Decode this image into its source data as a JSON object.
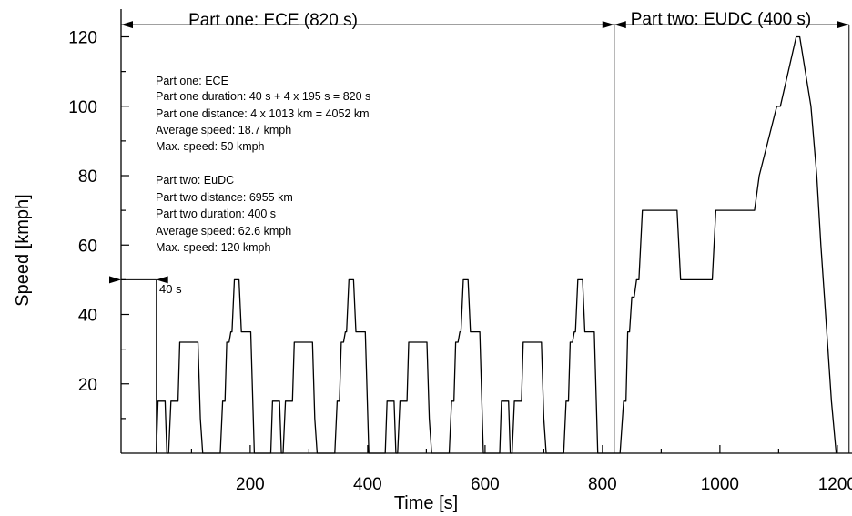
{
  "chart_data": {
    "type": "line",
    "xlabel": "Time [s]",
    "ylabel": "Speed [kmph]",
    "xlim": [
      -20,
      1225
    ],
    "ylim": [
      0,
      128
    ],
    "x_ticks_major": [
      200,
      400,
      600,
      800,
      1000,
      1200
    ],
    "y_ticks_major": [
      20,
      40,
      60,
      80,
      100,
      120
    ],
    "series": [
      {
        "x": [
          40,
          43,
          46,
          52,
          55,
          58,
          61,
          65,
          77,
          80,
          84,
          91,
          111,
          115,
          119,
          149,
          153,
          157,
          160,
          164,
          167,
          169,
          173,
          181,
          185,
          188,
          195,
          201,
          207,
          235,
          238,
          241,
          247,
          250,
          253,
          256,
          260,
          272,
          275,
          279,
          286,
          306,
          310,
          314,
          344,
          348,
          352,
          355,
          359,
          362,
          364,
          368,
          376,
          380,
          383,
          390,
          396,
          402,
          430,
          433,
          436,
          442,
          445,
          448,
          451,
          455,
          467,
          470,
          474,
          481,
          501,
          505,
          509,
          539,
          543,
          547,
          550,
          554,
          557,
          559,
          563,
          571,
          575,
          578,
          585,
          591,
          597,
          625,
          628,
          631,
          637,
          640,
          643,
          646,
          650,
          662,
          665,
          669,
          676,
          696,
          700,
          704,
          734,
          738,
          742,
          745,
          749,
          752,
          754,
          758,
          766,
          770,
          773,
          780,
          786,
          792,
          820,
          830,
          836,
          840,
          843,
          846,
          850,
          854,
          858,
          862,
          868,
          927,
          933,
          987,
          993,
          1059,
          1067,
          1097,
          1103,
          1130,
          1136,
          1155,
          1165,
          1172,
          1180,
          1190,
          1198
        ],
        "y": [
          0,
          15,
          15,
          15,
          15,
          0,
          0,
          15,
          15,
          32,
          32,
          32,
          32,
          10,
          0,
          0,
          15,
          15,
          32,
          32,
          35,
          35,
          50,
          50,
          35,
          35,
          35,
          35,
          0,
          0,
          15,
          15,
          15,
          15,
          0,
          0,
          15,
          15,
          32,
          32,
          32,
          32,
          10,
          0,
          0,
          15,
          15,
          32,
          32,
          35,
          35,
          50,
          50,
          35,
          35,
          35,
          35,
          0,
          0,
          15,
          15,
          15,
          15,
          0,
          0,
          15,
          15,
          32,
          32,
          32,
          32,
          10,
          0,
          0,
          15,
          15,
          32,
          32,
          35,
          35,
          50,
          50,
          35,
          35,
          35,
          35,
          0,
          0,
          15,
          15,
          15,
          15,
          0,
          0,
          15,
          15,
          32,
          32,
          32,
          32,
          10,
          0,
          0,
          15,
          15,
          32,
          32,
          35,
          35,
          50,
          50,
          35,
          35,
          35,
          35,
          0,
          0,
          0,
          15,
          15,
          35,
          35,
          45,
          45,
          50,
          50,
          70,
          70,
          50,
          50,
          70,
          70,
          80,
          100,
          100,
          120,
          120,
          100,
          80,
          60,
          40,
          15,
          0
        ]
      }
    ],
    "annotations": {
      "part_one_header": "Part one: ECE (820 s)",
      "part_two_header": "Part two: EUDC (400 s)",
      "forty_s_label": "40 s",
      "info_lines": [
        "Part one: ECE",
        "Part one duration: 40 s + 4 x 195 s = 820 s",
        "Part one distance: 4 x 1013 km = 4052 km",
        "Average speed: 18.7 kmph",
        "Max. speed: 50 kmph",
        "",
        "Part two: EuDC",
        "Part two distance: 6955 km",
        "Part two duration: 400 s",
        "Average speed: 62.6 kmph",
        "Max. speed: 120 kmph"
      ]
    },
    "grid": false,
    "legend": "none"
  }
}
